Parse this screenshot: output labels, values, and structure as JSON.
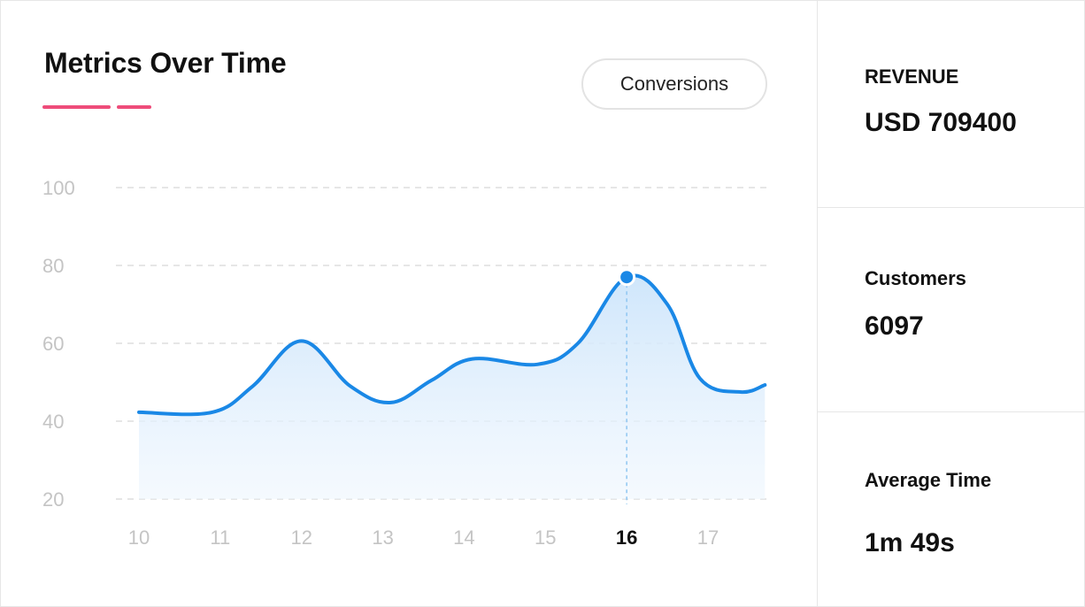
{
  "header": {
    "title": "Metrics Over Time",
    "metric_button_label": "Conversions"
  },
  "colors": {
    "accent_underline": "#ee4c7a",
    "series_line": "#1a88e6",
    "area_fill": "#d6eafb"
  },
  "chart_data": {
    "type": "area",
    "x": [
      10,
      11,
      12,
      13,
      14,
      15,
      16,
      17
    ],
    "y_ticks": [
      100,
      80,
      60,
      40,
      20
    ],
    "ylim": [
      20,
      100
    ],
    "highlight_x": 16,
    "series": [
      {
        "points": [
          [
            10,
            42.3
          ],
          [
            10.9,
            42.3
          ],
          [
            11.4,
            49
          ],
          [
            12.0,
            60.6
          ],
          [
            12.6,
            49
          ],
          [
            13.1,
            44.8
          ],
          [
            13.6,
            50.5
          ],
          [
            14.1,
            56
          ],
          [
            14.9,
            54.6
          ],
          [
            15.4,
            60
          ],
          [
            16.0,
            77
          ],
          [
            16.5,
            70
          ],
          [
            16.9,
            51
          ],
          [
            17.4,
            47.5
          ],
          [
            17.7,
            49.3
          ]
        ]
      }
    ],
    "grid": true,
    "title": "",
    "xlabel": "",
    "ylabel": ""
  },
  "stats": [
    {
      "label": "REVENUE",
      "value": "USD 709400"
    },
    {
      "label": "Customers",
      "value": "6097"
    },
    {
      "label": "Average Time",
      "value": "1m 49s"
    }
  ]
}
